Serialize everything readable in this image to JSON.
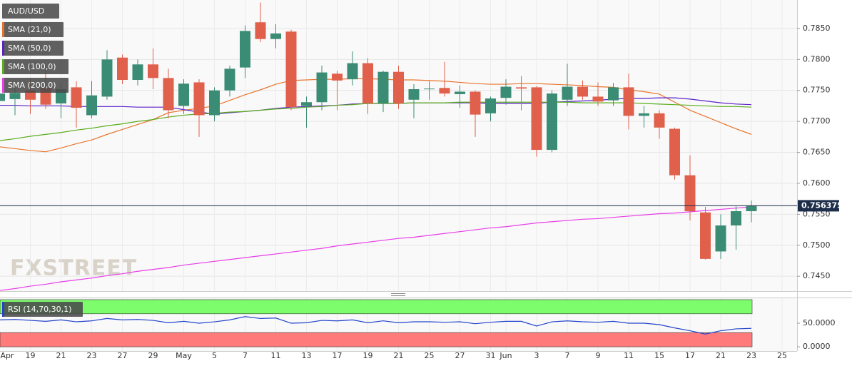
{
  "chart_data": {
    "type": "candlestick",
    "instrument": "AUD/USD",
    "watermark": "FXSTREET",
    "categories": [
      "Apr",
      null,
      "19",
      null,
      "21",
      null,
      "23",
      null,
      "27",
      null,
      "29",
      null,
      "May",
      null,
      "5",
      null,
      "7",
      null,
      "11",
      null,
      "13",
      null,
      "17",
      null,
      "19",
      null,
      "21",
      null,
      "25",
      null,
      "27",
      null,
      "31",
      "Jun",
      null,
      "3",
      null,
      "7",
      null,
      "9",
      null,
      "11",
      null,
      "15",
      null,
      "17",
      null,
      "21",
      null,
      "23",
      null,
      "25"
    ],
    "open": [
      0.7733,
      0.7736,
      0.775,
      0.7755,
      0.7729,
      0.7755,
      0.771,
      0.774,
      0.7803,
      0.7767,
      0.7792,
      0.777,
      0.7725,
      0.7763,
      0.771,
      0.775,
      0.7787,
      0.786,
      0.7833,
      0.7845,
      0.7725,
      0.7731,
      0.7777,
      0.7768,
      0.7794,
      0.7729,
      0.778,
      0.7735,
      0.7752,
      0.7754,
      0.7744,
      0.7748,
      0.7713,
      0.7738,
      0.7755,
      0.7755,
      0.7654,
      0.7735,
      0.7756,
      0.774,
      0.7734,
      0.7755,
      0.7709,
      0.7713,
      0.7688,
      0.7613,
      0.7553,
      0.749,
      0.7532,
      0.7555,
      null,
      null
    ],
    "high": [
      0.7755,
      0.776,
      0.777,
      0.779,
      0.776,
      0.7765,
      0.7765,
      0.7815,
      0.7808,
      0.78,
      0.7818,
      0.7785,
      0.7768,
      0.7768,
      0.7755,
      0.779,
      0.7855,
      0.7892,
      0.7857,
      0.7848,
      0.774,
      0.779,
      0.7782,
      0.7813,
      0.7802,
      0.7782,
      0.779,
      0.776,
      0.7765,
      0.7796,
      0.7758,
      0.775,
      0.774,
      0.7768,
      0.7773,
      0.7757,
      0.775,
      0.7793,
      0.7766,
      0.7763,
      0.7762,
      0.7777,
      0.7725,
      0.7718,
      0.769,
      0.7645,
      0.7562,
      0.755,
      0.7563,
      0.7572,
      null,
      null
    ],
    "low": [
      0.7725,
      0.771,
      0.7712,
      0.772,
      0.7705,
      0.769,
      0.7705,
      0.7735,
      0.776,
      0.7758,
      0.7752,
      0.7705,
      0.7712,
      0.7675,
      0.77,
      0.774,
      0.777,
      0.7828,
      0.7818,
      0.7718,
      0.769,
      0.7718,
      0.7718,
      0.7758,
      0.7712,
      0.7715,
      0.772,
      0.7705,
      0.7735,
      0.774,
      0.7722,
      0.7675,
      0.77,
      0.7727,
      0.7718,
      0.7643,
      0.765,
      0.7725,
      0.7735,
      0.7725,
      0.7725,
      0.7687,
      0.769,
      0.7672,
      0.7606,
      0.754,
      0.7477,
      0.7478,
      0.7493,
      0.7537,
      null,
      null
    ],
    "close": [
      0.7745,
      0.7746,
      0.7735,
      0.7727,
      0.7752,
      0.7722,
      0.7742,
      0.78,
      0.7767,
      0.7792,
      0.777,
      0.7718,
      0.7761,
      0.771,
      0.775,
      0.7785,
      0.7846,
      0.7833,
      0.7842,
      0.7723,
      0.7731,
      0.7779,
      0.7766,
      0.7794,
      0.7729,
      0.778,
      0.7729,
      0.7752,
      0.7753,
      0.7745,
      0.7748,
      0.7711,
      0.7737,
      0.7756,
      0.7753,
      0.7654,
      0.7745,
      0.7756,
      0.774,
      0.7732,
      0.7755,
      0.7709,
      0.7713,
      0.769,
      0.7613,
      0.7555,
      0.7478,
      0.7532,
      0.7555,
      0.756375,
      null,
      null
    ],
    "up_color": "#3b8c74",
    "down_color": "#e0604c",
    "last_price": 0.756375,
    "last_color": "#1c2e4a",
    "ylim": [
      0.7426,
      0.7896
    ],
    "yticks": [
      {
        "value": 0.745,
        "label": "0.7450"
      },
      {
        "value": 0.75,
        "label": "0.7500"
      },
      {
        "value": 0.755,
        "label": "0.7550"
      },
      {
        "value": 0.76,
        "label": "0.7600"
      },
      {
        "value": 0.765,
        "label": "0.7650"
      },
      {
        "value": 0.77,
        "label": "0.7700"
      },
      {
        "value": 0.775,
        "label": "0.7750"
      },
      {
        "value": 0.78,
        "label": "0.7800"
      },
      {
        "value": 0.785,
        "label": "0.7850"
      }
    ],
    "grid": true,
    "series": [
      {
        "name": "SMA (21,0)",
        "color": "#e8742c",
        "values": [
          0.7659,
          0.7656,
          0.7653,
          0.7651,
          0.7657,
          0.7664,
          0.767,
          0.7679,
          0.7687,
          0.7695,
          0.7703,
          0.7714,
          0.7718,
          0.7721,
          0.7725,
          0.7734,
          0.7743,
          0.7751,
          0.776,
          0.7766,
          0.7767,
          0.7768,
          0.7768,
          0.7769,
          0.7769,
          0.7768,
          0.7767,
          0.7767,
          0.7766,
          0.7765,
          0.7763,
          0.7761,
          0.776,
          0.776,
          0.7761,
          0.7761,
          0.776,
          0.7759,
          0.7758,
          0.7756,
          0.7755,
          0.7751,
          0.7748,
          0.7744,
          0.7731,
          0.7718,
          0.7708,
          0.7698,
          0.7688,
          0.7679,
          null,
          null
        ]
      },
      {
        "name": "SMA (50,0)",
        "color": "#5b21c9",
        "values": [
          0.7726,
          0.7726,
          0.7725,
          0.7725,
          0.7725,
          0.7724,
          0.7724,
          0.7724,
          0.7724,
          0.7723,
          0.7723,
          0.7723,
          0.7719,
          0.7715,
          0.7712,
          0.7714,
          0.7716,
          0.7718,
          0.7721,
          0.7723,
          0.7724,
          0.7725,
          0.7726,
          0.7728,
          0.7729,
          0.7729,
          0.7729,
          0.773,
          0.773,
          0.773,
          0.773,
          0.773,
          0.7729,
          0.7729,
          0.7729,
          0.7729,
          0.7731,
          0.7732,
          0.7733,
          0.7734,
          0.7736,
          0.7737,
          0.7737,
          0.7738,
          0.7738,
          0.7736,
          0.7733,
          0.773,
          0.7728,
          0.7727,
          null,
          null
        ]
      },
      {
        "name": "SMA (100,0)",
        "color": "#5aad1c",
        "values": [
          0.7669,
          0.7672,
          0.7676,
          0.7679,
          0.7682,
          0.7686,
          0.7689,
          0.7693,
          0.7696,
          0.77,
          0.7703,
          0.7707,
          0.771,
          0.7712,
          0.7713,
          0.7715,
          0.7716,
          0.7718,
          0.772,
          0.7721,
          0.7723,
          0.7724,
          0.7726,
          0.7727,
          0.7729,
          0.7729,
          0.7729,
          0.773,
          0.773,
          0.773,
          0.7731,
          0.7731,
          0.7731,
          0.7731,
          0.7731,
          0.7731,
          0.7731,
          0.7731,
          0.773,
          0.773,
          0.773,
          0.773,
          0.7729,
          0.7728,
          0.7727,
          0.7726,
          0.7725,
          0.7724,
          0.7724,
          0.7723,
          null,
          null
        ]
      },
      {
        "name": "SMA (200,0)",
        "color": "#e83de8",
        "values": [
          0.7427,
          0.743,
          0.7434,
          0.7437,
          0.7441,
          0.7444,
          0.7447,
          0.7451,
          0.7454,
          0.7458,
          0.7461,
          0.7464,
          0.7468,
          0.7471,
          0.7474,
          0.7477,
          0.748,
          0.7483,
          0.7486,
          0.7489,
          0.7492,
          0.7495,
          0.7499,
          0.7502,
          0.7505,
          0.7508,
          0.7511,
          0.7513,
          0.7516,
          0.7519,
          0.7522,
          0.7525,
          0.7528,
          0.753,
          0.7533,
          0.7536,
          0.7538,
          0.754,
          0.7542,
          0.7543,
          0.7545,
          0.7547,
          0.7549,
          0.7551,
          0.7552,
          0.7554,
          0.7556,
          0.7558,
          0.756,
          0.7562,
          null,
          null
        ]
      }
    ],
    "rsi": {
      "name": "RSI (14,70,30,1)",
      "color": "#2244cc",
      "overbought": 70,
      "oversold": 30,
      "overbought_color": "#7dfc6c",
      "oversold_color": "#ff7b7b",
      "ylim": [
        -9,
        103
      ],
      "yticks": [
        {
          "value": 0,
          "label": "0.0000"
        },
        {
          "value": 50,
          "label": "50.0000"
        }
      ],
      "values": [
        57,
        58,
        56,
        54,
        57,
        53,
        55,
        60,
        57,
        58,
        56,
        51,
        54,
        50,
        53,
        57,
        64,
        60,
        61,
        50,
        51,
        56,
        55,
        57,
        51,
        55,
        51,
        53,
        53,
        52,
        53,
        49,
        52,
        54,
        54,
        44,
        53,
        55,
        53,
        52,
        54,
        50,
        50,
        47,
        40,
        34,
        27,
        34,
        38,
        39,
        null,
        null
      ]
    }
  }
}
